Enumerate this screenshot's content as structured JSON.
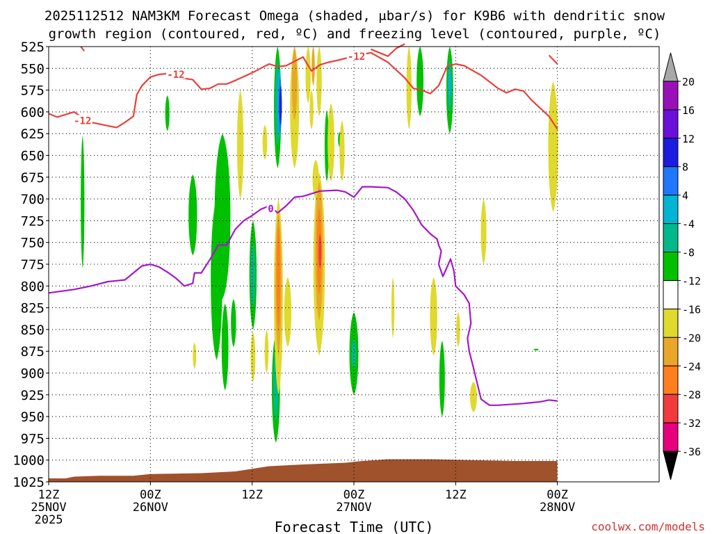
{
  "chart_data": {
    "type": "heatmap",
    "title_line1": "2025112512 NAM3KM Forecast Omega (shaded, μbar/s) for K9B6 with dendritic snow",
    "title_line2": "growth region (contoured, red, ºC) and freezing level (contoured, purple, ºC)",
    "xlabel": "Forecast Time (UTC)",
    "credit": "coolwx.com/models",
    "x_range_hours": [
      0,
      72
    ],
    "y_range_mb": [
      525,
      1025
    ],
    "y_scale": "pressure (inverted, top 525 mb)",
    "grid": "dotted",
    "y_ticks": [
      525,
      550,
      575,
      600,
      625,
      650,
      675,
      700,
      725,
      750,
      775,
      800,
      825,
      850,
      875,
      900,
      925,
      950,
      975,
      1000,
      1025
    ],
    "x_ticks": [
      {
        "hour": 0,
        "lines": [
          "12Z",
          "25NOV",
          "2025"
        ]
      },
      {
        "hour": 12,
        "lines": [
          "00Z",
          "26NOV"
        ]
      },
      {
        "hour": 24,
        "lines": [
          "12Z"
        ]
      },
      {
        "hour": 36,
        "lines": [
          "00Z",
          "27NOV"
        ]
      },
      {
        "hour": 48,
        "lines": [
          "12Z"
        ]
      },
      {
        "hour": 60,
        "lines": [
          "00Z",
          "28NOV"
        ]
      }
    ],
    "colorbar": {
      "labels": [
        "20",
        "16",
        "12",
        "8",
        "4",
        "-4",
        "-8",
        "-12",
        "-16",
        "-20",
        "-24",
        "-28",
        "-32",
        "-36"
      ],
      "bins": [
        {
          "color": "#f2f2f2",
          "label": ""
        },
        {
          "color": "#e6007e",
          "label": ""
        },
        {
          "color": "#f03c3c",
          "label": ""
        },
        {
          "color": "#ff7f1e",
          "label": ""
        },
        {
          "color": "#e9a62a",
          "label": ""
        },
        {
          "color": "#e0d92e",
          "label": ""
        },
        {
          "color": "#ffffff",
          "label": ""
        },
        {
          "color": "#00c000",
          "label": ""
        },
        {
          "color": "#00b88a",
          "label": ""
        },
        {
          "color": "#00b4d2",
          "label": ""
        },
        {
          "color": "#1f78ff",
          "label": ""
        },
        {
          "color": "#1c1ce0",
          "label": ""
        },
        {
          "color": "#6a10d8",
          "label": ""
        },
        {
          "color": "#9a10b8",
          "label": ""
        },
        {
          "color": "#a8a8a8",
          "label": ""
        }
      ]
    },
    "contours": [
      {
        "name": "dendritic",
        "level_label": "-12",
        "color": "#e8403a",
        "points": [
          [
            0,
            602
          ],
          [
            1,
            606
          ],
          [
            3,
            600
          ],
          [
            4,
            607
          ],
          [
            5,
            612
          ],
          [
            7,
            616
          ],
          [
            8,
            618
          ],
          [
            9,
            612
          ],
          [
            10,
            605
          ],
          [
            10.4,
            580
          ],
          [
            11,
            570
          ],
          [
            12,
            560
          ],
          [
            13,
            557
          ],
          [
            14,
            556
          ],
          [
            15,
            560
          ],
          [
            17,
            563
          ],
          [
            18,
            574
          ],
          [
            19,
            573
          ],
          [
            20,
            568
          ],
          [
            21,
            568
          ],
          [
            22,
            564
          ],
          [
            24,
            555
          ],
          [
            25,
            550
          ],
          [
            26,
            545
          ],
          [
            27,
            548
          ],
          [
            28,
            547
          ],
          [
            30,
            537
          ],
          [
            31,
            553
          ],
          [
            32,
            546
          ],
          [
            33,
            543
          ],
          [
            34,
            541
          ],
          [
            36,
            536
          ],
          [
            38,
            532
          ],
          [
            40,
            543
          ],
          [
            42,
            561
          ],
          [
            43,
            573
          ],
          [
            44,
            575
          ],
          [
            45,
            579
          ],
          [
            46,
            570
          ],
          [
            47,
            548
          ],
          [
            48,
            545
          ],
          [
            49,
            547
          ],
          [
            51,
            558
          ],
          [
            53,
            573
          ],
          [
            54,
            578
          ],
          [
            55,
            574
          ],
          [
            56,
            576
          ],
          [
            57,
            587
          ],
          [
            59,
            605
          ],
          [
            60,
            620
          ]
        ]
      },
      {
        "name": "dendritic",
        "level_label": "-12",
        "color": "#e8403a",
        "points": [
          [
            38,
            528
          ],
          [
            40,
            536
          ],
          [
            41,
            527
          ],
          [
            42,
            522
          ]
        ]
      },
      {
        "name": "dendritic",
        "color": "#e8403a",
        "points": [
          [
            3.8,
            525
          ],
          [
            4.2,
            530
          ]
        ]
      },
      {
        "name": "dendritic",
        "color": "#e8403a",
        "points": [
          [
            59,
            535
          ],
          [
            60,
            545
          ]
        ]
      },
      {
        "name": "freezing",
        "level_label": "0",
        "color": "#a218c8",
        "points": [
          [
            0,
            808
          ],
          [
            3,
            804
          ],
          [
            5,
            800
          ],
          [
            7,
            795
          ],
          [
            8,
            794
          ],
          [
            9,
            793
          ],
          [
            10,
            785
          ],
          [
            11,
            777
          ],
          [
            12,
            775
          ],
          [
            13,
            778
          ],
          [
            14,
            784
          ],
          [
            15,
            791
          ],
          [
            16,
            800
          ],
          [
            17,
            797
          ],
          [
            17.2,
            785
          ],
          [
            18,
            785
          ],
          [
            19,
            770
          ],
          [
            20,
            753
          ],
          [
            21,
            753
          ],
          [
            22,
            735
          ],
          [
            23,
            725
          ],
          [
            24,
            719
          ],
          [
            25,
            712
          ],
          [
            26,
            708
          ],
          [
            27,
            716
          ],
          [
            28,
            708
          ],
          [
            29,
            698
          ],
          [
            30,
            697
          ],
          [
            32,
            691
          ],
          [
            34,
            690
          ],
          [
            35,
            692
          ],
          [
            36,
            698
          ],
          [
            37,
            686
          ],
          [
            38,
            686
          ],
          [
            40,
            687
          ],
          [
            41,
            692
          ],
          [
            42,
            700
          ],
          [
            43,
            713
          ],
          [
            44,
            730
          ],
          [
            45,
            740
          ],
          [
            45.8,
            746
          ],
          [
            46,
            753
          ],
          [
            46.3,
            760
          ],
          [
            46,
            775
          ],
          [
            46.5,
            789
          ],
          [
            47,
            778
          ],
          [
            47.4,
            769
          ],
          [
            47.8,
            783
          ],
          [
            48,
            800
          ],
          [
            49,
            810
          ],
          [
            49.6,
            820
          ],
          [
            49.8,
            843
          ],
          [
            49.4,
            860
          ],
          [
            49.6,
            875
          ],
          [
            50,
            890
          ],
          [
            51,
            930
          ],
          [
            52,
            937
          ],
          [
            53,
            937
          ],
          [
            56,
            935
          ],
          [
            58,
            933
          ],
          [
            59,
            931
          ],
          [
            60,
            932
          ]
        ]
      }
    ],
    "labels": [
      {
        "text": "-12",
        "x": 4,
        "p": 610,
        "color": "#e8403a"
      },
      {
        "text": "-12",
        "x": 15,
        "p": 557,
        "color": "#e8403a"
      },
      {
        "text": "-12",
        "x": 36.3,
        "p": 536,
        "color": "#e8403a"
      },
      {
        "text": "0",
        "x": 26.2,
        "p": 711,
        "color": "#a218c8"
      }
    ],
    "shaded": [
      {
        "color": "#00c000",
        "cx": 4,
        "p1": 627,
        "p2": 780,
        "w": 0.18
      },
      {
        "color": "#00c000",
        "cx": 14,
        "p1": 581,
        "p2": 622,
        "w": 0.25
      },
      {
        "color": "#00c000",
        "cx": 17,
        "p1": 672,
        "p2": 765,
        "w": 0.75
      },
      {
        "color": "#00c000",
        "cx": 19.8,
        "p1": 700,
        "p2": 885,
        "w": 1.1
      },
      {
        "color": "#00c000",
        "cx": 20.5,
        "p1": 625,
        "p2": 815,
        "w": 1.6
      },
      {
        "color": "#00c000",
        "cx": 20.8,
        "p1": 820,
        "p2": 920,
        "w": 0.55
      },
      {
        "color": "#00c000",
        "cx": 21.8,
        "p1": 815,
        "p2": 870,
        "w": 0.35
      },
      {
        "color": "#00c000",
        "cx": 24.1,
        "p1": 725,
        "p2": 850,
        "w": 0.6
      },
      {
        "color": "#00c000",
        "cx": 27,
        "p1": 525,
        "p2": 665,
        "w": 0.6
      },
      {
        "color": "#00c000",
        "cx": 26.8,
        "p1": 855,
        "p2": 980,
        "w": 0.7
      },
      {
        "color": "#00c000",
        "cx": 32.8,
        "p1": 598,
        "p2": 680,
        "w": 0.25
      },
      {
        "color": "#00c000",
        "cx": 34.3,
        "p1": 623,
        "p2": 640,
        "w": 0.1
      },
      {
        "color": "#00c000",
        "cx": 36,
        "p1": 830,
        "p2": 925,
        "w": 0.8
      },
      {
        "color": "#00c000",
        "cx": 43.8,
        "p1": 525,
        "p2": 605,
        "w": 0.55
      },
      {
        "color": "#00c000",
        "cx": 47.3,
        "p1": 525,
        "p2": 625,
        "w": 0.55
      },
      {
        "color": "#00c000",
        "cx": 46.4,
        "p1": 863,
        "p2": 950,
        "w": 0.4
      },
      {
        "color": "#00c000",
        "cx": 57.5,
        "p1": 872,
        "p2": 874,
        "w": 0.35
      },
      {
        "color": "#00b88a",
        "cx": 27,
        "p1": 540,
        "p2": 640,
        "w": 0.35
      },
      {
        "color": "#00b88a",
        "cx": 24.1,
        "p1": 750,
        "p2": 825,
        "w": 0.3
      },
      {
        "color": "#00b88a",
        "cx": 26.8,
        "p1": 870,
        "p2": 955,
        "w": 0.35
      },
      {
        "color": "#00b88a",
        "cx": 36,
        "p1": 860,
        "p2": 895,
        "w": 0.3
      },
      {
        "color": "#00b88a",
        "cx": 47.3,
        "p1": 540,
        "p2": 600,
        "w": 0.25
      },
      {
        "color": "#00b4d2",
        "cx": 27.2,
        "p1": 550,
        "p2": 630,
        "w": 0.2
      },
      {
        "color": "#00b4d2",
        "cx": 47.3,
        "p1": 550,
        "p2": 585,
        "w": 0.12
      },
      {
        "color": "#1f78ff",
        "cx": 27.3,
        "p1": 560,
        "p2": 625,
        "w": 0.12
      },
      {
        "color": "#1c1ce0",
        "cx": 27.35,
        "p1": 570,
        "p2": 615,
        "w": 0.05
      },
      {
        "color": "#e0d92e",
        "cx": 29,
        "p1": 525,
        "p2": 665,
        "w": 0.8
      },
      {
        "color": "#e0d92e",
        "cx": 27.1,
        "p1": 700,
        "p2": 925,
        "w": 0.8
      },
      {
        "color": "#e0d92e",
        "cx": 28.2,
        "p1": 790,
        "p2": 870,
        "w": 0.6
      },
      {
        "color": "#e0d92e",
        "cx": 22.6,
        "p1": 575,
        "p2": 700,
        "w": 0.5
      },
      {
        "color": "#e0d92e",
        "cx": 25.5,
        "p1": 615,
        "p2": 655,
        "w": 0.3
      },
      {
        "color": "#e0d92e",
        "cx": 31.5,
        "p1": 655,
        "p2": 700,
        "w": 0.5
      },
      {
        "color": "#e0d92e",
        "cx": 30.6,
        "p1": 525,
        "p2": 590,
        "w": 0.35
      },
      {
        "color": "#e0d92e",
        "cx": 31.9,
        "p1": 525,
        "p2": 605,
        "w": 0.35
      },
      {
        "color": "#e0d92e",
        "cx": 31.9,
        "p1": 670,
        "p2": 880,
        "w": 1.1
      },
      {
        "color": "#e0d92e",
        "cx": 33.3,
        "p1": 590,
        "p2": 680,
        "w": 0.55
      },
      {
        "color": "#e0d92e",
        "cx": 34.6,
        "p1": 610,
        "p2": 680,
        "w": 0.35
      },
      {
        "color": "#e0d92e",
        "cx": 31,
        "p1": 575,
        "p2": 620,
        "w": 0.2
      },
      {
        "color": "#e0d92e",
        "cx": 42.5,
        "p1": 525,
        "p2": 620,
        "w": 0.35
      },
      {
        "color": "#e0d92e",
        "cx": 45.4,
        "p1": 790,
        "p2": 880,
        "w": 0.6
      },
      {
        "color": "#e0d92e",
        "cx": 48.3,
        "p1": 830,
        "p2": 870,
        "w": 0.2
      },
      {
        "color": "#e0d92e",
        "cx": 50.1,
        "p1": 910,
        "p2": 945,
        "w": 0.55
      },
      {
        "color": "#e0d92e",
        "cx": 51.3,
        "p1": 700,
        "p2": 775,
        "w": 0.4
      },
      {
        "color": "#e0d92e",
        "cx": 59.5,
        "p1": 565,
        "p2": 715,
        "w": 0.9
      },
      {
        "color": "#e0d92e",
        "cx": 24.1,
        "p1": 853,
        "p2": 910,
        "w": 0.3
      },
      {
        "color": "#e0d92e",
        "cx": 25.7,
        "p1": 850,
        "p2": 900,
        "w": 0.2
      },
      {
        "color": "#e0d92e",
        "cx": 17.2,
        "p1": 865,
        "p2": 895,
        "w": 0.15
      },
      {
        "color": "#e0d92e",
        "cx": 40.6,
        "p1": 790,
        "p2": 860,
        "w": 0.1
      },
      {
        "color": "#e9a62a",
        "cx": 27.1,
        "p1": 715,
        "p2": 880,
        "w": 0.45
      },
      {
        "color": "#e9a62a",
        "cx": 29,
        "p1": 525,
        "p2": 610,
        "w": 0.35
      },
      {
        "color": "#e9a62a",
        "cx": 31.9,
        "p1": 680,
        "p2": 840,
        "w": 0.65
      },
      {
        "color": "#e9a62a",
        "cx": 31.2,
        "p1": 525,
        "p2": 570,
        "w": 0.12
      },
      {
        "color": "#ff7f1e",
        "cx": 27.1,
        "p1": 730,
        "p2": 850,
        "w": 0.2
      },
      {
        "color": "#ff7f1e",
        "cx": 31.9,
        "p1": 710,
        "p2": 810,
        "w": 0.3
      },
      {
        "color": "#f03c3c",
        "cx": 32,
        "p1": 740,
        "p2": 780,
        "w": 0.1
      }
    ],
    "terrain": {
      "color": "#a0522d",
      "points": [
        [
          0,
          1021
        ],
        [
          2,
          1021
        ],
        [
          3,
          1019
        ],
        [
          6,
          1018
        ],
        [
          10,
          1018
        ],
        [
          12,
          1016
        ],
        [
          18,
          1015
        ],
        [
          22,
          1013
        ],
        [
          24,
          1010
        ],
        [
          26,
          1007
        ],
        [
          30,
          1005
        ],
        [
          35,
          1003
        ],
        [
          37,
          1001
        ],
        [
          40,
          999
        ],
        [
          45,
          999
        ],
        [
          50,
          1000
        ],
        [
          55,
          1001
        ],
        [
          60,
          1001
        ]
      ]
    }
  }
}
